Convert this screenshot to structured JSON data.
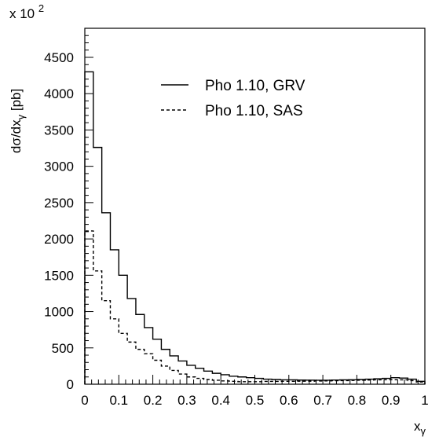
{
  "chart_data": {
    "type": "histogram",
    "xlabel": "x",
    "xlabel_sub": "γ",
    "ylabel_main": "dσ/dx",
    "ylabel_sub": "γ",
    "ylabel_unit": "[pb]",
    "y_multiplier_prefix": "x 10",
    "y_multiplier_exp": "2",
    "xlim": [
      0,
      1
    ],
    "ylim": [
      0,
      4900
    ],
    "x_ticks": [
      "0",
      "0.1",
      "0.2",
      "0.3",
      "0.4",
      "0.5",
      "0.6",
      "0.7",
      "0.8",
      "0.9",
      "1"
    ],
    "y_ticks": [
      "0",
      "500",
      "1000",
      "1500",
      "2000",
      "2500",
      "3000",
      "3500",
      "4000",
      "4500"
    ],
    "grid": false,
    "legend_position": "top-right",
    "bin_edges": [
      0,
      0.025,
      0.05,
      0.075,
      0.1,
      0.125,
      0.15,
      0.175,
      0.2,
      0.225,
      0.25,
      0.275,
      0.3,
      0.325,
      0.35,
      0.375,
      0.4,
      0.425,
      0.45,
      0.475,
      0.5,
      0.525,
      0.55,
      0.575,
      0.6,
      0.625,
      0.65,
      0.675,
      0.7,
      0.725,
      0.75,
      0.775,
      0.8,
      0.825,
      0.85,
      0.875,
      0.9,
      0.925,
      0.95,
      0.975,
      1.0
    ],
    "series": [
      {
        "name": "Pho 1.10, GRV",
        "style": "solid",
        "values": [
          4300,
          3260,
          2360,
          1850,
          1500,
          1180,
          960,
          780,
          620,
          480,
          390,
          320,
          260,
          220,
          180,
          150,
          130,
          110,
          100,
          90,
          80,
          70,
          65,
          60,
          60,
          58,
          56,
          55,
          55,
          58,
          60,
          62,
          65,
          70,
          75,
          80,
          90,
          85,
          70,
          40
        ]
      },
      {
        "name": "Pho 1.10, SAS",
        "style": "dashed",
        "values": [
          2110,
          1560,
          1150,
          900,
          700,
          580,
          480,
          420,
          330,
          250,
          190,
          140,
          100,
          80,
          65,
          55,
          45,
          40,
          35,
          35,
          35,
          38,
          38,
          40,
          40,
          42,
          42,
          44,
          45,
          48,
          50,
          52,
          55,
          58,
          60,
          62,
          62,
          60,
          50,
          30
        ]
      }
    ]
  }
}
